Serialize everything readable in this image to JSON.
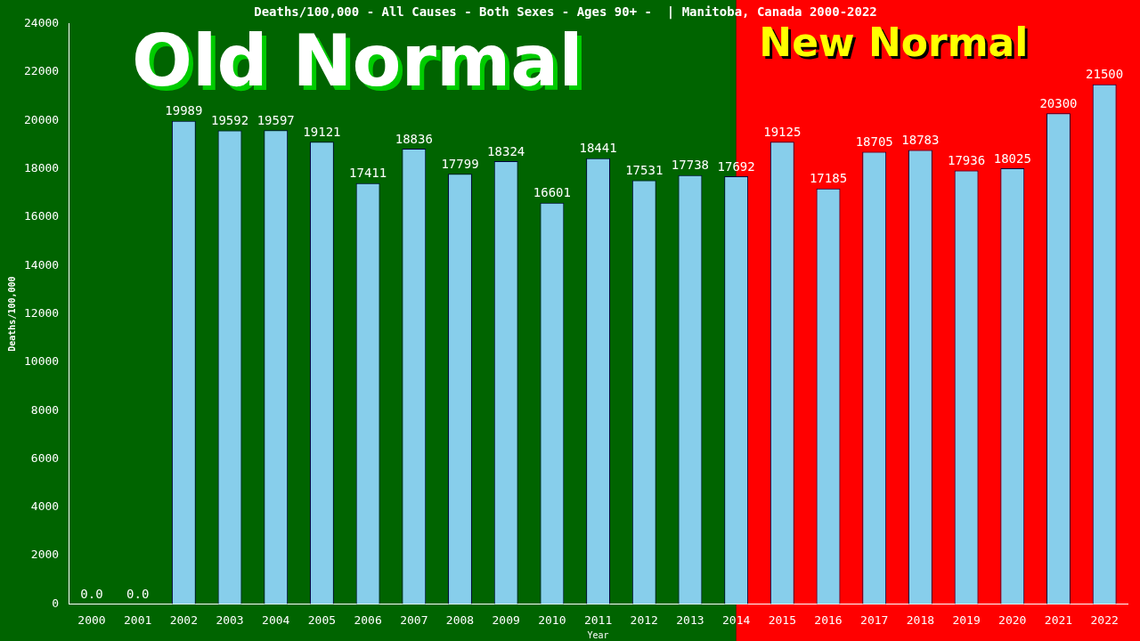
{
  "chart_data": {
    "type": "bar",
    "title": "Deaths/100,000 - All Causes - Both Sexes - Ages 90+ -  | Manitoba, Canada 2000-2022",
    "xlabel": "Year",
    "ylabel": "Deaths/100,000",
    "categories": [
      "2000",
      "2001",
      "2002",
      "2003",
      "2004",
      "2005",
      "2006",
      "2007",
      "2008",
      "2009",
      "2010",
      "2011",
      "2012",
      "2013",
      "2014",
      "2015",
      "2016",
      "2017",
      "2018",
      "2019",
      "2020",
      "2021",
      "2022"
    ],
    "values": [
      0,
      0,
      19989,
      19592,
      19597,
      19121,
      17411,
      18836,
      17799,
      18324,
      16601,
      18441,
      17531,
      17738,
      17692,
      19125,
      17185,
      18705,
      18783,
      17936,
      18025,
      20300,
      21500
    ],
    "value_labels": [
      "0.0",
      "0.0",
      "19989",
      "19592",
      "19597",
      "19121",
      "17411",
      "18836",
      "17799",
      "18324",
      "16601",
      "18441",
      "17531",
      "17738",
      "17692",
      "19125",
      "17185",
      "18705",
      "18783",
      "17936",
      "18025",
      "20300",
      "21500"
    ],
    "color": "#87ceeb",
    "ylim": [
      0,
      24000
    ],
    "yticks": [
      0,
      2000,
      4000,
      6000,
      8000,
      10000,
      12000,
      14000,
      16000,
      18000,
      20000,
      22000,
      24000
    ],
    "bands": [
      {
        "axis": "x",
        "from": "2000",
        "to": "2014",
        "label": "Old Normal",
        "color": "#006400"
      },
      {
        "axis": "x",
        "from": "2014",
        "to": "2022",
        "label": "New Normal",
        "color": "#ff0000"
      }
    ],
    "grid": false,
    "legend": false
  }
}
